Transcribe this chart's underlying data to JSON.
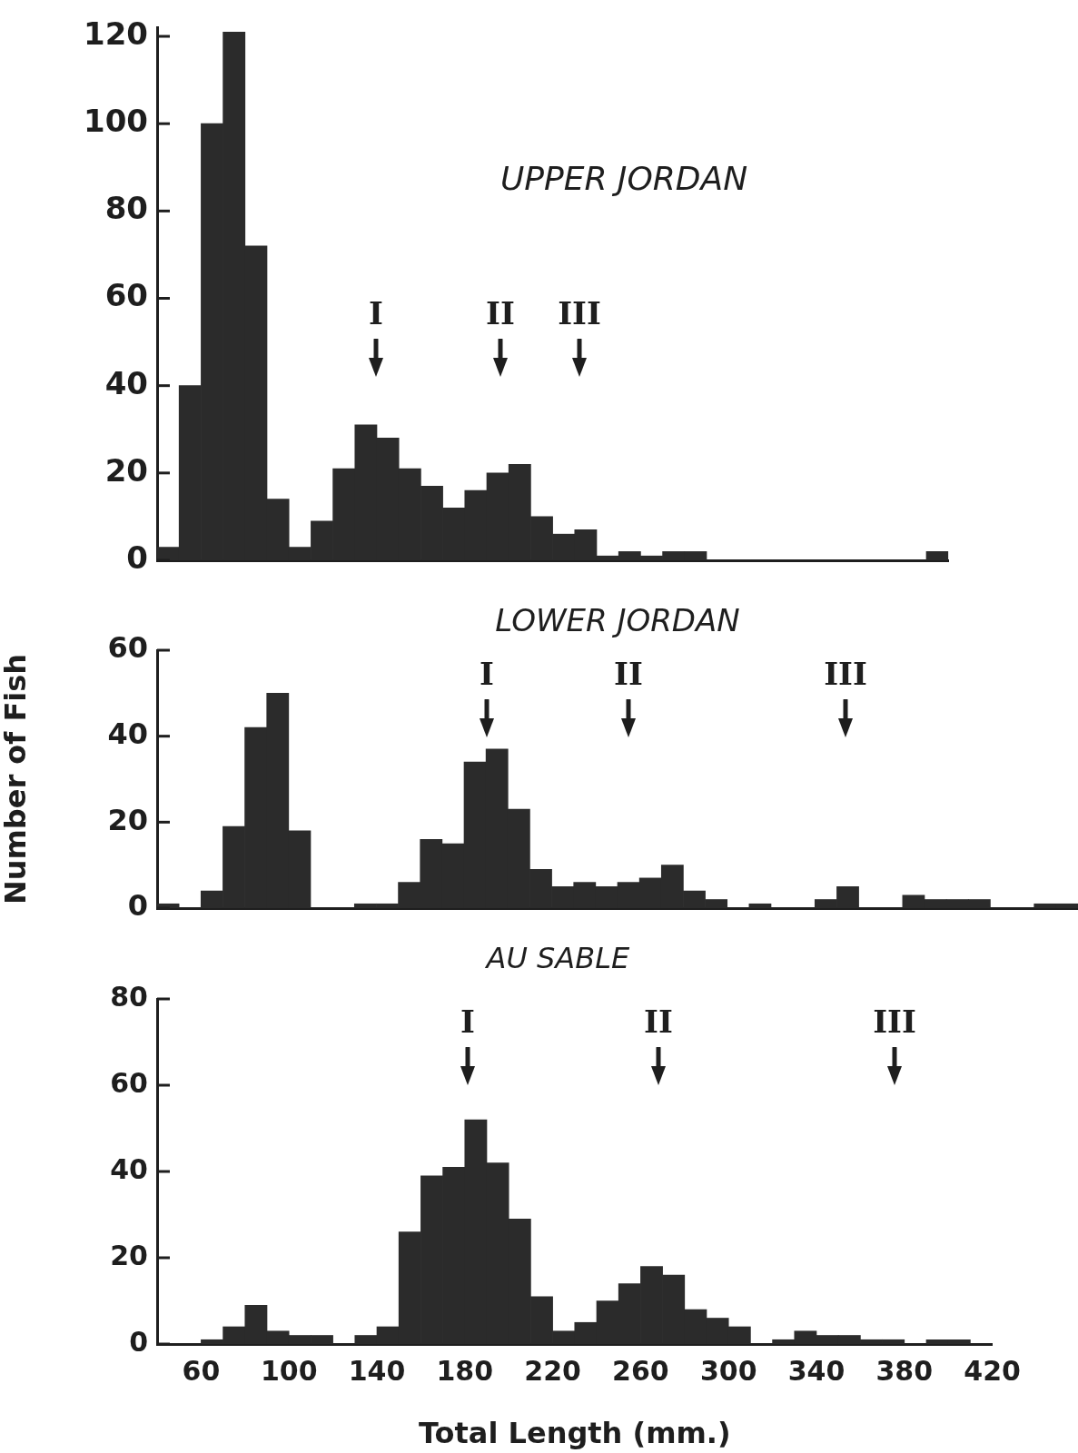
{
  "chart_data": [
    {
      "type": "histogram",
      "title": "UPPER JORDAN",
      "bins": [
        40,
        50,
        60,
        70,
        80,
        90,
        100,
        110,
        120,
        130,
        140,
        150,
        160,
        170,
        180,
        190,
        200,
        210,
        220,
        230,
        240,
        250,
        260,
        270,
        280,
        290,
        300,
        310,
        320,
        330,
        340,
        350,
        360,
        370,
        380,
        390,
        400
      ],
      "values": [
        3,
        40,
        100,
        121,
        72,
        14,
        3,
        9,
        21,
        31,
        28,
        21,
        17,
        12,
        16,
        20,
        22,
        10,
        6,
        7,
        1,
        2,
        1,
        2,
        2,
        0,
        0,
        0,
        0,
        0,
        0,
        0,
        0,
        0,
        0,
        2
      ],
      "color": "#2b2b2b",
      "xlim": [
        40,
        400
      ],
      "ylim": [
        0,
        122
      ],
      "yticks": [
        0,
        20,
        40,
        60,
        80,
        100,
        120
      ],
      "xticks": [
        60,
        100,
        140,
        180,
        220,
        260,
        300,
        340,
        380
      ],
      "tick_labels": "y",
      "annotations": [
        "I",
        "II",
        "III"
      ]
    },
    {
      "type": "histogram",
      "title": "LOWER JORDAN",
      "ylabel": "Number of Fish",
      "bins": [
        40,
        50,
        60,
        70,
        80,
        90,
        100,
        110,
        120,
        130,
        140,
        150,
        160,
        170,
        180,
        190,
        200,
        210,
        220,
        230,
        240,
        250,
        260,
        270,
        280,
        290,
        300,
        310,
        320,
        330,
        340,
        350,
        360,
        370,
        380,
        390,
        400,
        410,
        420,
        430,
        440,
        450,
        460
      ],
      "values": [
        1,
        0,
        4,
        19,
        42,
        50,
        18,
        0,
        0,
        1,
        1,
        6,
        16,
        15,
        34,
        37,
        23,
        9,
        5,
        6,
        5,
        6,
        7,
        10,
        4,
        2,
        0,
        1,
        0,
        0,
        2,
        5,
        0,
        0,
        3,
        2,
        2,
        2,
        0,
        0,
        1,
        1
      ],
      "color": "#2b2b2b",
      "xlim": [
        40,
        460
      ],
      "ylim": [
        0,
        60
      ],
      "yticks": [
        0,
        20,
        40,
        60
      ],
      "xticks": [
        60,
        100,
        140,
        180,
        220,
        260,
        300,
        340,
        380,
        420
      ],
      "tick_labels": "y",
      "annotations": [
        "I",
        "II",
        "III"
      ]
    },
    {
      "type": "histogram",
      "title": "AU SABLE",
      "xlabel": "Total Length (mm.)",
      "bins": [
        40,
        50,
        60,
        70,
        80,
        90,
        100,
        110,
        120,
        130,
        140,
        150,
        160,
        170,
        180,
        190,
        200,
        210,
        220,
        230,
        240,
        250,
        260,
        270,
        280,
        290,
        300,
        310,
        320,
        330,
        340,
        350,
        360,
        370,
        380,
        390,
        400,
        410,
        420
      ],
      "values": [
        0,
        0,
        1,
        4,
        9,
        3,
        2,
        2,
        0,
        2,
        4,
        26,
        39,
        41,
        52,
        42,
        29,
        11,
        3,
        5,
        10,
        14,
        18,
        16,
        8,
        6,
        4,
        0,
        1,
        3,
        2,
        2,
        1,
        1,
        0,
        1,
        1,
        0
      ],
      "color": "#2b2b2b",
      "xlim": [
        40,
        420
      ],
      "ylim": [
        0,
        80
      ],
      "yticks": [
        0,
        20,
        40,
        60,
        80
      ],
      "xticks": [
        60,
        100,
        140,
        180,
        220,
        260,
        300,
        340,
        380,
        420
      ],
      "annotations": [
        "I",
        "II",
        "III"
      ]
    }
  ]
}
